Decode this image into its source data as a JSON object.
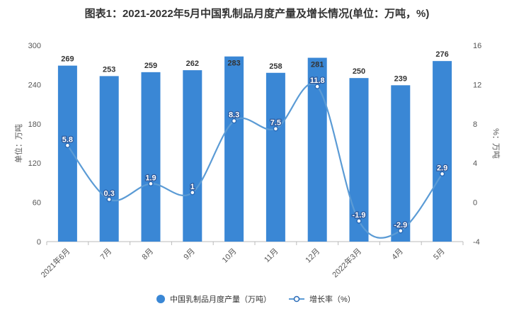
{
  "chart_data": {
    "type": "bar",
    "title": "图表1：2021-2022年5月中国乳制品月度产量及增长情况(单位：万吨，%)",
    "categories": [
      "2021年6月",
      "7月",
      "8月",
      "9月",
      "10月",
      "11月",
      "12月",
      "2022年3月",
      "4月",
      "5月"
    ],
    "series": [
      {
        "name": "中国乳制品月度产量（万吨）",
        "type": "bar",
        "axis": "left",
        "color": "#3a87d5",
        "values": [
          269,
          253,
          259,
          262,
          283,
          258,
          281,
          250,
          239,
          276
        ],
        "labels": [
          "269",
          "253",
          "259",
          "262",
          "283",
          "258",
          "281",
          "250",
          "239",
          "276"
        ]
      },
      {
        "name": "增长率（%）",
        "type": "line",
        "axis": "right",
        "color": "#5b9bd5",
        "values": [
          5.8,
          0.3,
          1.9,
          1,
          8.3,
          7.5,
          11.8,
          -1.9,
          -2.9,
          2.9
        ],
        "labels": [
          "5.8",
          "0.3",
          "1.9",
          "1",
          "8.3",
          "7.5",
          "11.8",
          "-1.9",
          "-2.9",
          "2.9"
        ]
      }
    ],
    "ylabel": "单位：万吨",
    "y2label": "%：万吨",
    "ylim": [
      0,
      300
    ],
    "yticks": [
      "0",
      "60",
      "120",
      "180",
      "240",
      "300"
    ],
    "y2lim": [
      -4,
      16
    ],
    "y2ticks": [
      "-4",
      "0",
      "4",
      "8",
      "12",
      "16"
    ],
    "grid": false,
    "legend": "bottom-center"
  }
}
